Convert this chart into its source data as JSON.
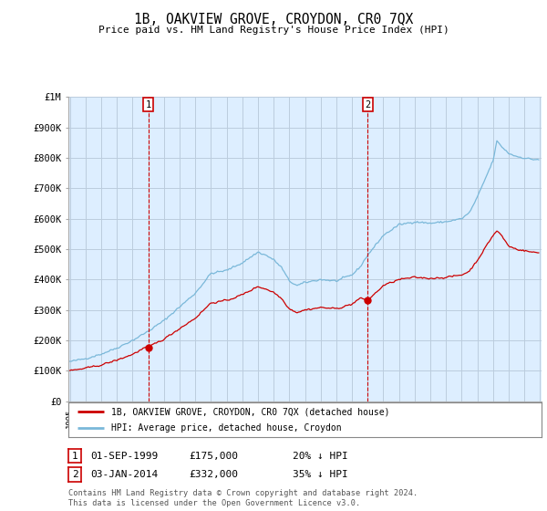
{
  "title": "1B, OAKVIEW GROVE, CROYDON, CR0 7QX",
  "subtitle": "Price paid vs. HM Land Registry's House Price Index (HPI)",
  "legend_label_red": "1B, OAKVIEW GROVE, CROYDON, CR0 7QX (detached house)",
  "legend_label_blue": "HPI: Average price, detached house, Croydon",
  "annotation1_date": "01-SEP-1999",
  "annotation1_price": "£175,000",
  "annotation1_hpi": "20% ↓ HPI",
  "annotation2_date": "03-JAN-2014",
  "annotation2_price": "£332,000",
  "annotation2_hpi": "35% ↓ HPI",
  "footnote": "Contains HM Land Registry data © Crown copyright and database right 2024.\nThis data is licensed under the Open Government Licence v3.0.",
  "hpi_color": "#7ab8d9",
  "price_color": "#cc0000",
  "annotation_color": "#cc0000",
  "background_color": "#ffffff",
  "chart_bg_color": "#ddeeff",
  "grid_color": "#bbccdd",
  "ylim": [
    0,
    1000000
  ],
  "yticks": [
    0,
    100000,
    200000,
    300000,
    400000,
    500000,
    600000,
    700000,
    800000,
    900000,
    1000000
  ],
  "ytick_labels": [
    "£0",
    "£100K",
    "£200K",
    "£300K",
    "£400K",
    "£500K",
    "£600K",
    "£700K",
    "£800K",
    "£900K",
    "£1M"
  ],
  "ann1_x": 2000.0,
  "ann1_y": 175000,
  "ann2_x": 2014.0,
  "ann2_y": 332000,
  "xlim_left": 1995.0,
  "xlim_right": 2025.0
}
